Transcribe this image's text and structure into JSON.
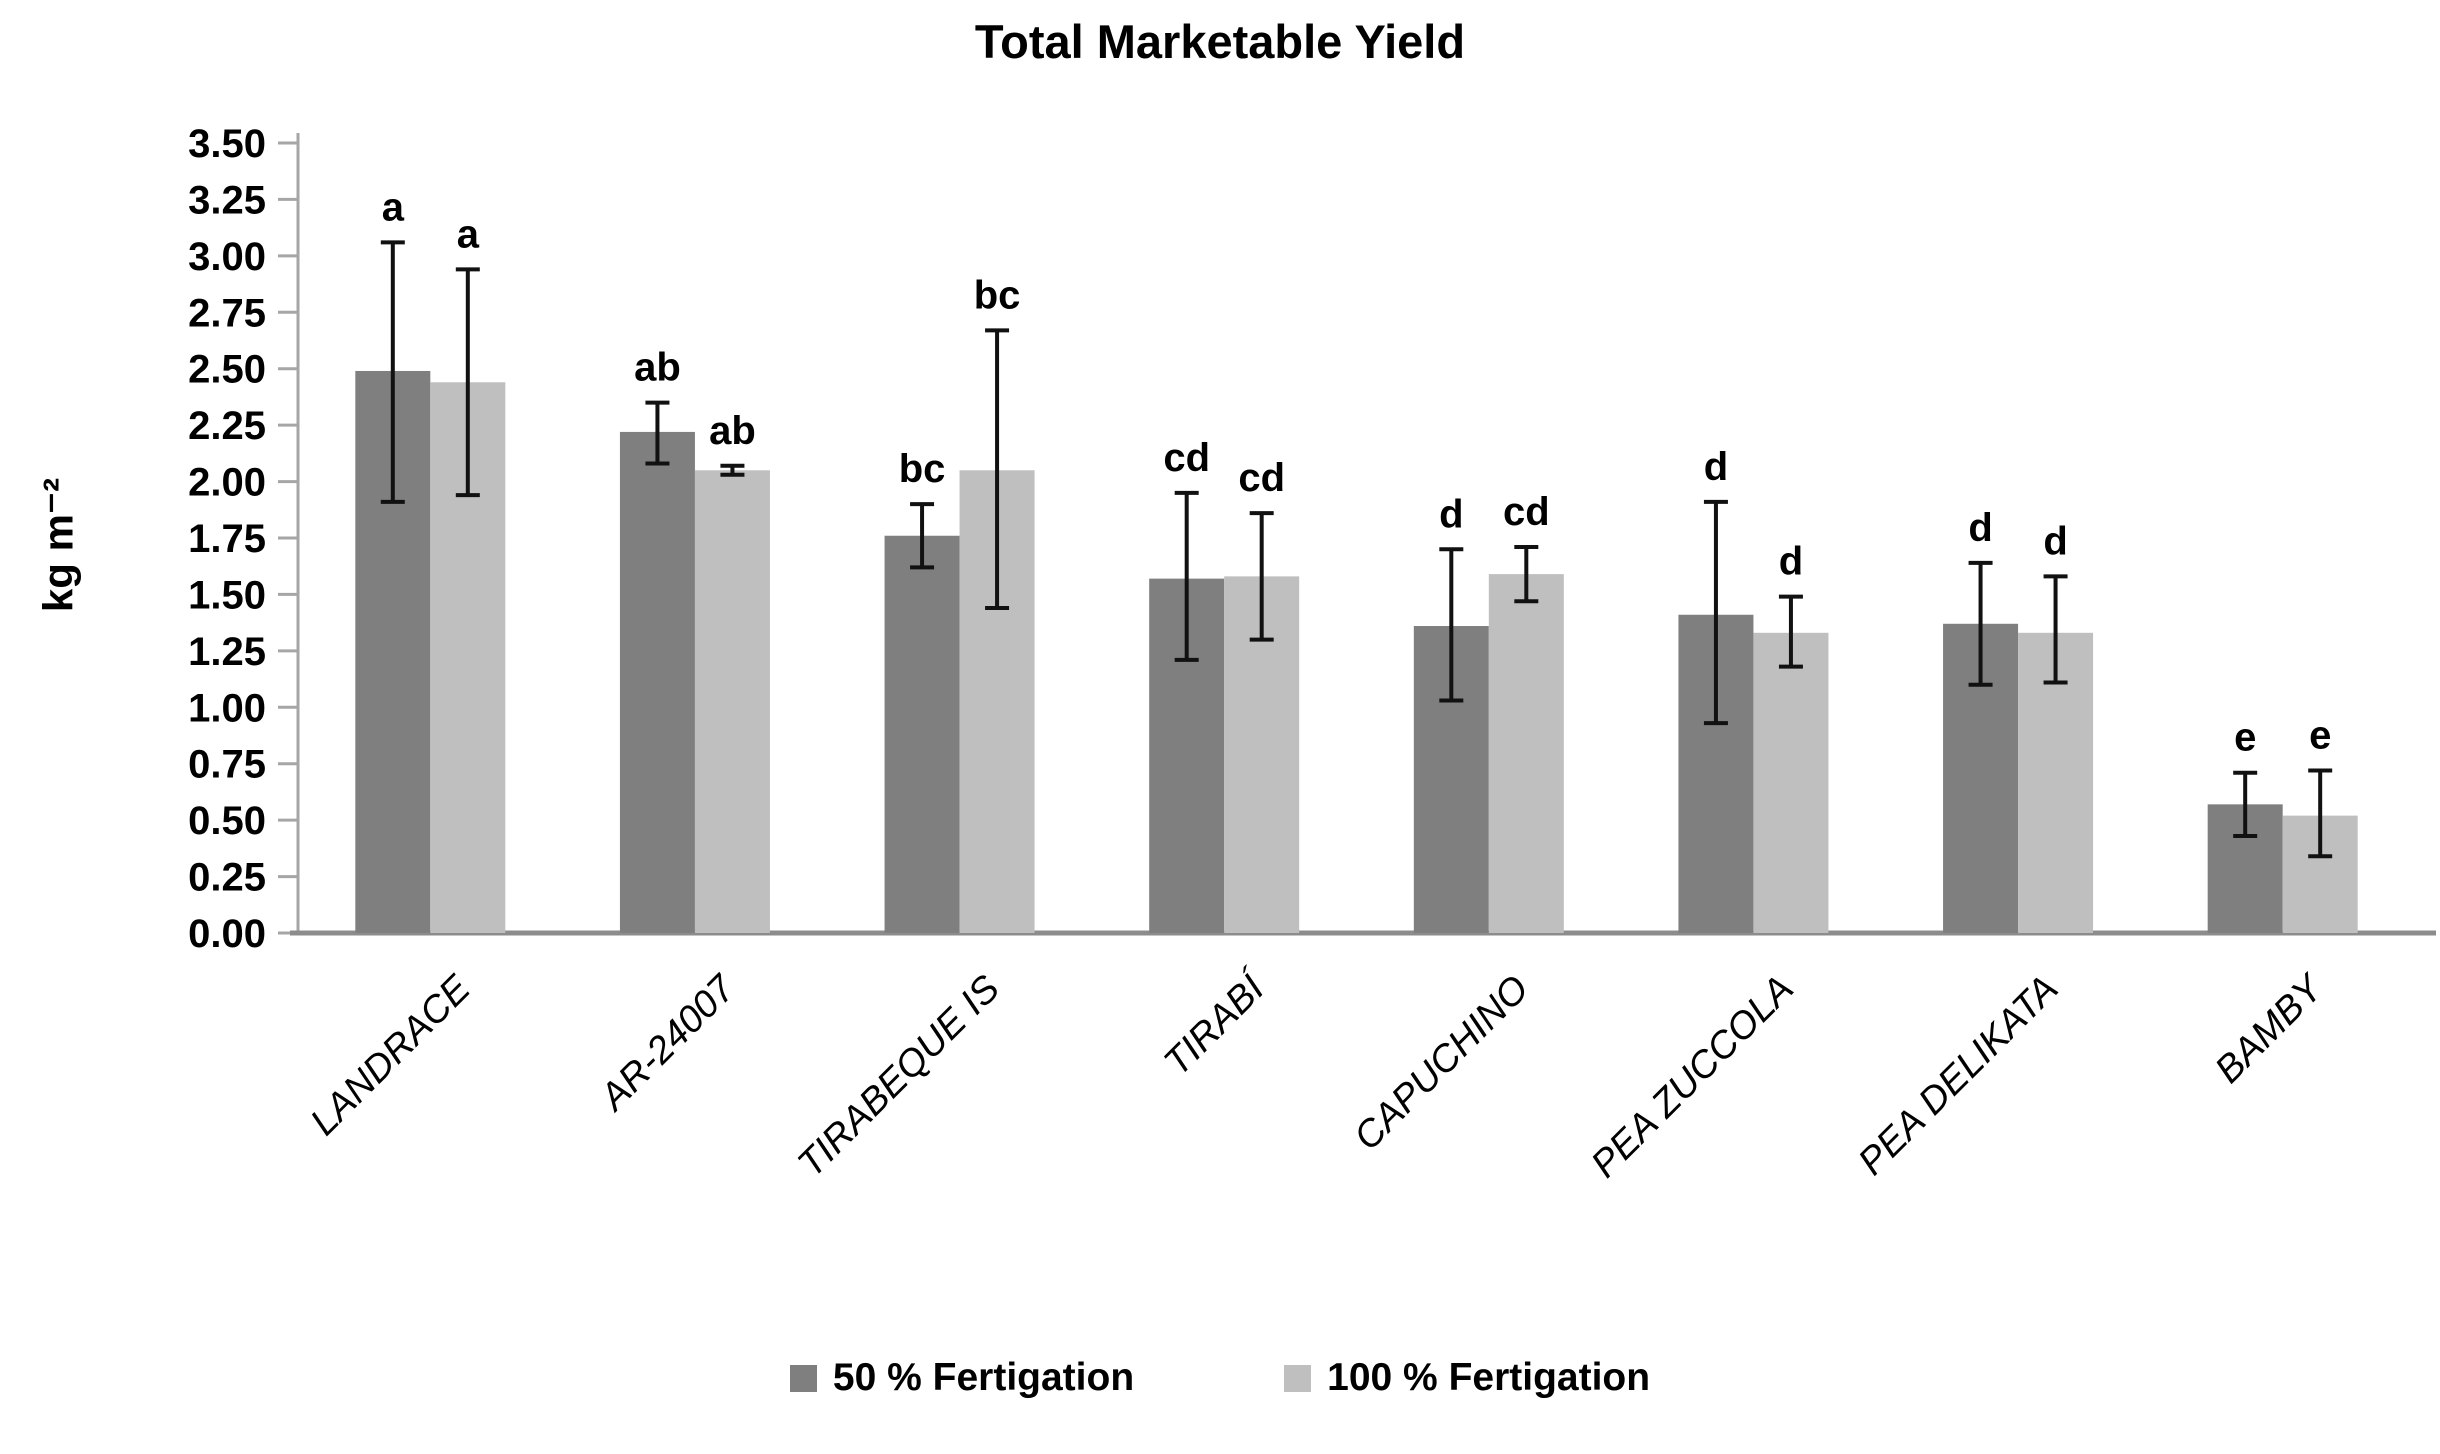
{
  "title": "Total Marketable Yield",
  "chart_data": {
    "type": "bar",
    "title": "Total Marketable Yield",
    "xlabel": "",
    "ylabel": "kg m⁻²",
    "ylim": [
      0,
      3.5
    ],
    "ytick_step": 0.25,
    "grid": false,
    "legend_position": "bottom",
    "yticks": [
      "0.00",
      "0.25",
      "0.50",
      "0.75",
      "1.00",
      "1.25",
      "1.50",
      "1.75",
      "2.00",
      "2.25",
      "2.50",
      "2.75",
      "3.00",
      "3.25",
      "3.50"
    ],
    "categories": [
      "LANDRACE",
      "AR-24007",
      "TIRABEQUE IS",
      "TIRABÍ",
      "CAPUCHINO",
      "PEA ZUCCOLA",
      "PEA DELIKATA",
      "BAMBY"
    ],
    "series": [
      {
        "name": "50 % Fertigation",
        "color": "#7f7f7f",
        "values": [
          2.49,
          2.22,
          1.76,
          1.57,
          1.36,
          1.41,
          1.37,
          0.57
        ],
        "err_low": [
          1.91,
          2.08,
          1.62,
          1.21,
          1.03,
          0.93,
          1.1,
          0.43
        ],
        "err_high": [
          3.06,
          2.35,
          1.9,
          1.95,
          1.7,
          1.91,
          1.64,
          0.71
        ],
        "letters": [
          "a",
          "ab",
          "bc",
          "cd",
          "d",
          "d",
          "d",
          "e"
        ]
      },
      {
        "name": "100 % Fertigation",
        "color": "#bfbfbf",
        "values": [
          2.44,
          2.05,
          2.05,
          1.58,
          1.59,
          1.33,
          1.33,
          0.52
        ],
        "err_low": [
          1.94,
          2.03,
          1.44,
          1.3,
          1.47,
          1.18,
          1.11,
          0.34
        ],
        "err_high": [
          2.94,
          2.07,
          2.67,
          1.86,
          1.71,
          1.49,
          1.58,
          0.72
        ],
        "letters": [
          "a",
          "ab",
          "bc",
          "cd",
          "cd",
          "d",
          "d",
          "e"
        ]
      }
    ],
    "error_bar_color": "#111111",
    "axis_color": "#a6a6a6",
    "baseline_color": "#8c8c8c"
  }
}
